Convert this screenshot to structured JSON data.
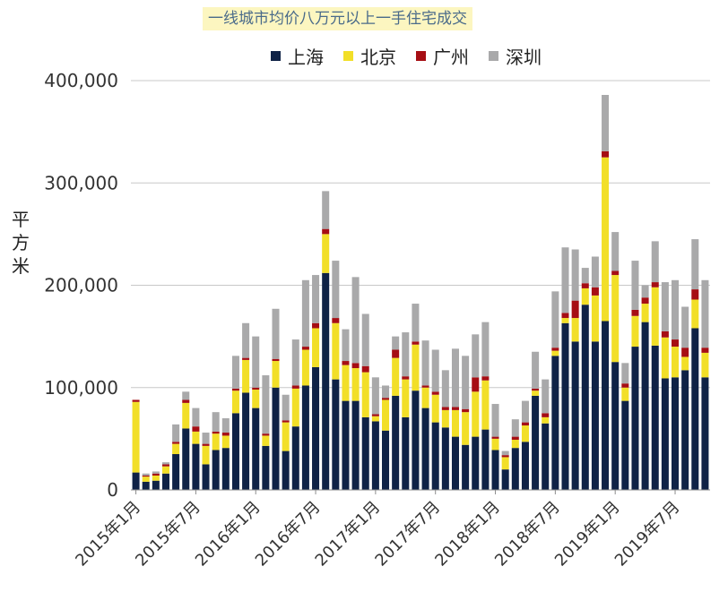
{
  "chart_data": {
    "type": "bar",
    "stacked": true,
    "title": "一线城市均价八万元以上一手住宅成交",
    "ylabel": "平方米",
    "xlabel": "",
    "ylim": [
      0,
      400000
    ],
    "yticks": [
      0,
      100000,
      200000,
      300000,
      400000
    ],
    "ytick_labels": [
      "0",
      "100,000",
      "200,000",
      "300,000",
      "400,000"
    ],
    "grid": true,
    "legend_position": "top",
    "x_tick_labels": [
      {
        "index": 0,
        "label": "2015年1月"
      },
      {
        "index": 6,
        "label": "2015年7月"
      },
      {
        "index": 12,
        "label": "2016年1月"
      },
      {
        "index": 18,
        "label": "2016年7月"
      },
      {
        "index": 24,
        "label": "2017年1月"
      },
      {
        "index": 30,
        "label": "2017年7月"
      },
      {
        "index": 36,
        "label": "2018年1月"
      },
      {
        "index": 42,
        "label": "2018年7月"
      },
      {
        "index": 48,
        "label": "2019年1月"
      },
      {
        "index": 54,
        "label": "2019年7月"
      }
    ],
    "series": [
      {
        "name": "上海",
        "color": "#0f2246",
        "values": [
          17000,
          8000,
          9000,
          16000,
          35000,
          60000,
          45000,
          25000,
          39000,
          41000,
          75000,
          95000,
          80000,
          43000,
          100000,
          38000,
          62000,
          102000,
          120000,
          212000,
          108000,
          87000,
          87000,
          71000,
          67000,
          58000,
          92000,
          71000,
          97000,
          80000,
          66000,
          61000,
          52000,
          44000,
          52000,
          59000,
          39000,
          20000,
          41000,
          47000,
          92000,
          65000,
          131000,
          163000,
          145000,
          181000,
          145000,
          165000,
          125000,
          87000,
          140000,
          164000,
          141000,
          109000,
          110000,
          117000,
          158000,
          110000
        ]
      },
      {
        "name": "北京",
        "color": "#f2df28",
        "values": [
          69000,
          5000,
          5000,
          7000,
          10000,
          25000,
          12000,
          18000,
          16000,
          12000,
          22000,
          32000,
          18000,
          10000,
          26000,
          28000,
          37000,
          35000,
          38000,
          38000,
          55000,
          35000,
          32000,
          44000,
          5000,
          30000,
          37000,
          37000,
          45000,
          20000,
          27000,
          17000,
          26000,
          32000,
          44000,
          48000,
          11000,
          12000,
          8000,
          16000,
          5000,
          6000,
          5000,
          5000,
          23000,
          16000,
          45000,
          160000,
          85000,
          13000,
          30000,
          18000,
          57000,
          40000,
          30000,
          13000,
          28000,
          24000
        ]
      },
      {
        "name": "广州",
        "color": "#a60e14",
        "values": [
          2000,
          1000,
          2000,
          2000,
          2000,
          3000,
          5000,
          2000,
          2000,
          3000,
          2000,
          2000,
          2000,
          2000,
          2000,
          2000,
          3000,
          3000,
          5000,
          5000,
          5000,
          4000,
          5000,
          6000,
          2000,
          2000,
          8000,
          3000,
          3000,
          2000,
          3000,
          3000,
          3000,
          3000,
          14000,
          4000,
          2000,
          2000,
          3000,
          3000,
          2000,
          4000,
          3000,
          5000,
          17000,
          5000,
          8000,
          6000,
          4000,
          4000,
          6000,
          6000,
          5000,
          6000,
          7000,
          9000,
          10000,
          5000
        ]
      },
      {
        "name": "深圳",
        "color": "#a9a9aa",
        "values": [
          0,
          2000,
          2000,
          2000,
          17000,
          8000,
          18000,
          11000,
          19000,
          14000,
          32000,
          34000,
          50000,
          57000,
          49000,
          25000,
          45000,
          65000,
          47000,
          37000,
          56000,
          31000,
          84000,
          51000,
          36000,
          12000,
          13000,
          43000,
          37000,
          44000,
          41000,
          36000,
          57000,
          52000,
          42000,
          53000,
          32000,
          4000,
          17000,
          21000,
          36000,
          33000,
          55000,
          64000,
          50000,
          15000,
          30000,
          55000,
          38000,
          20000,
          48000,
          12000,
          40000,
          48000,
          58000,
          40000,
          49000,
          66000
        ]
      }
    ]
  }
}
